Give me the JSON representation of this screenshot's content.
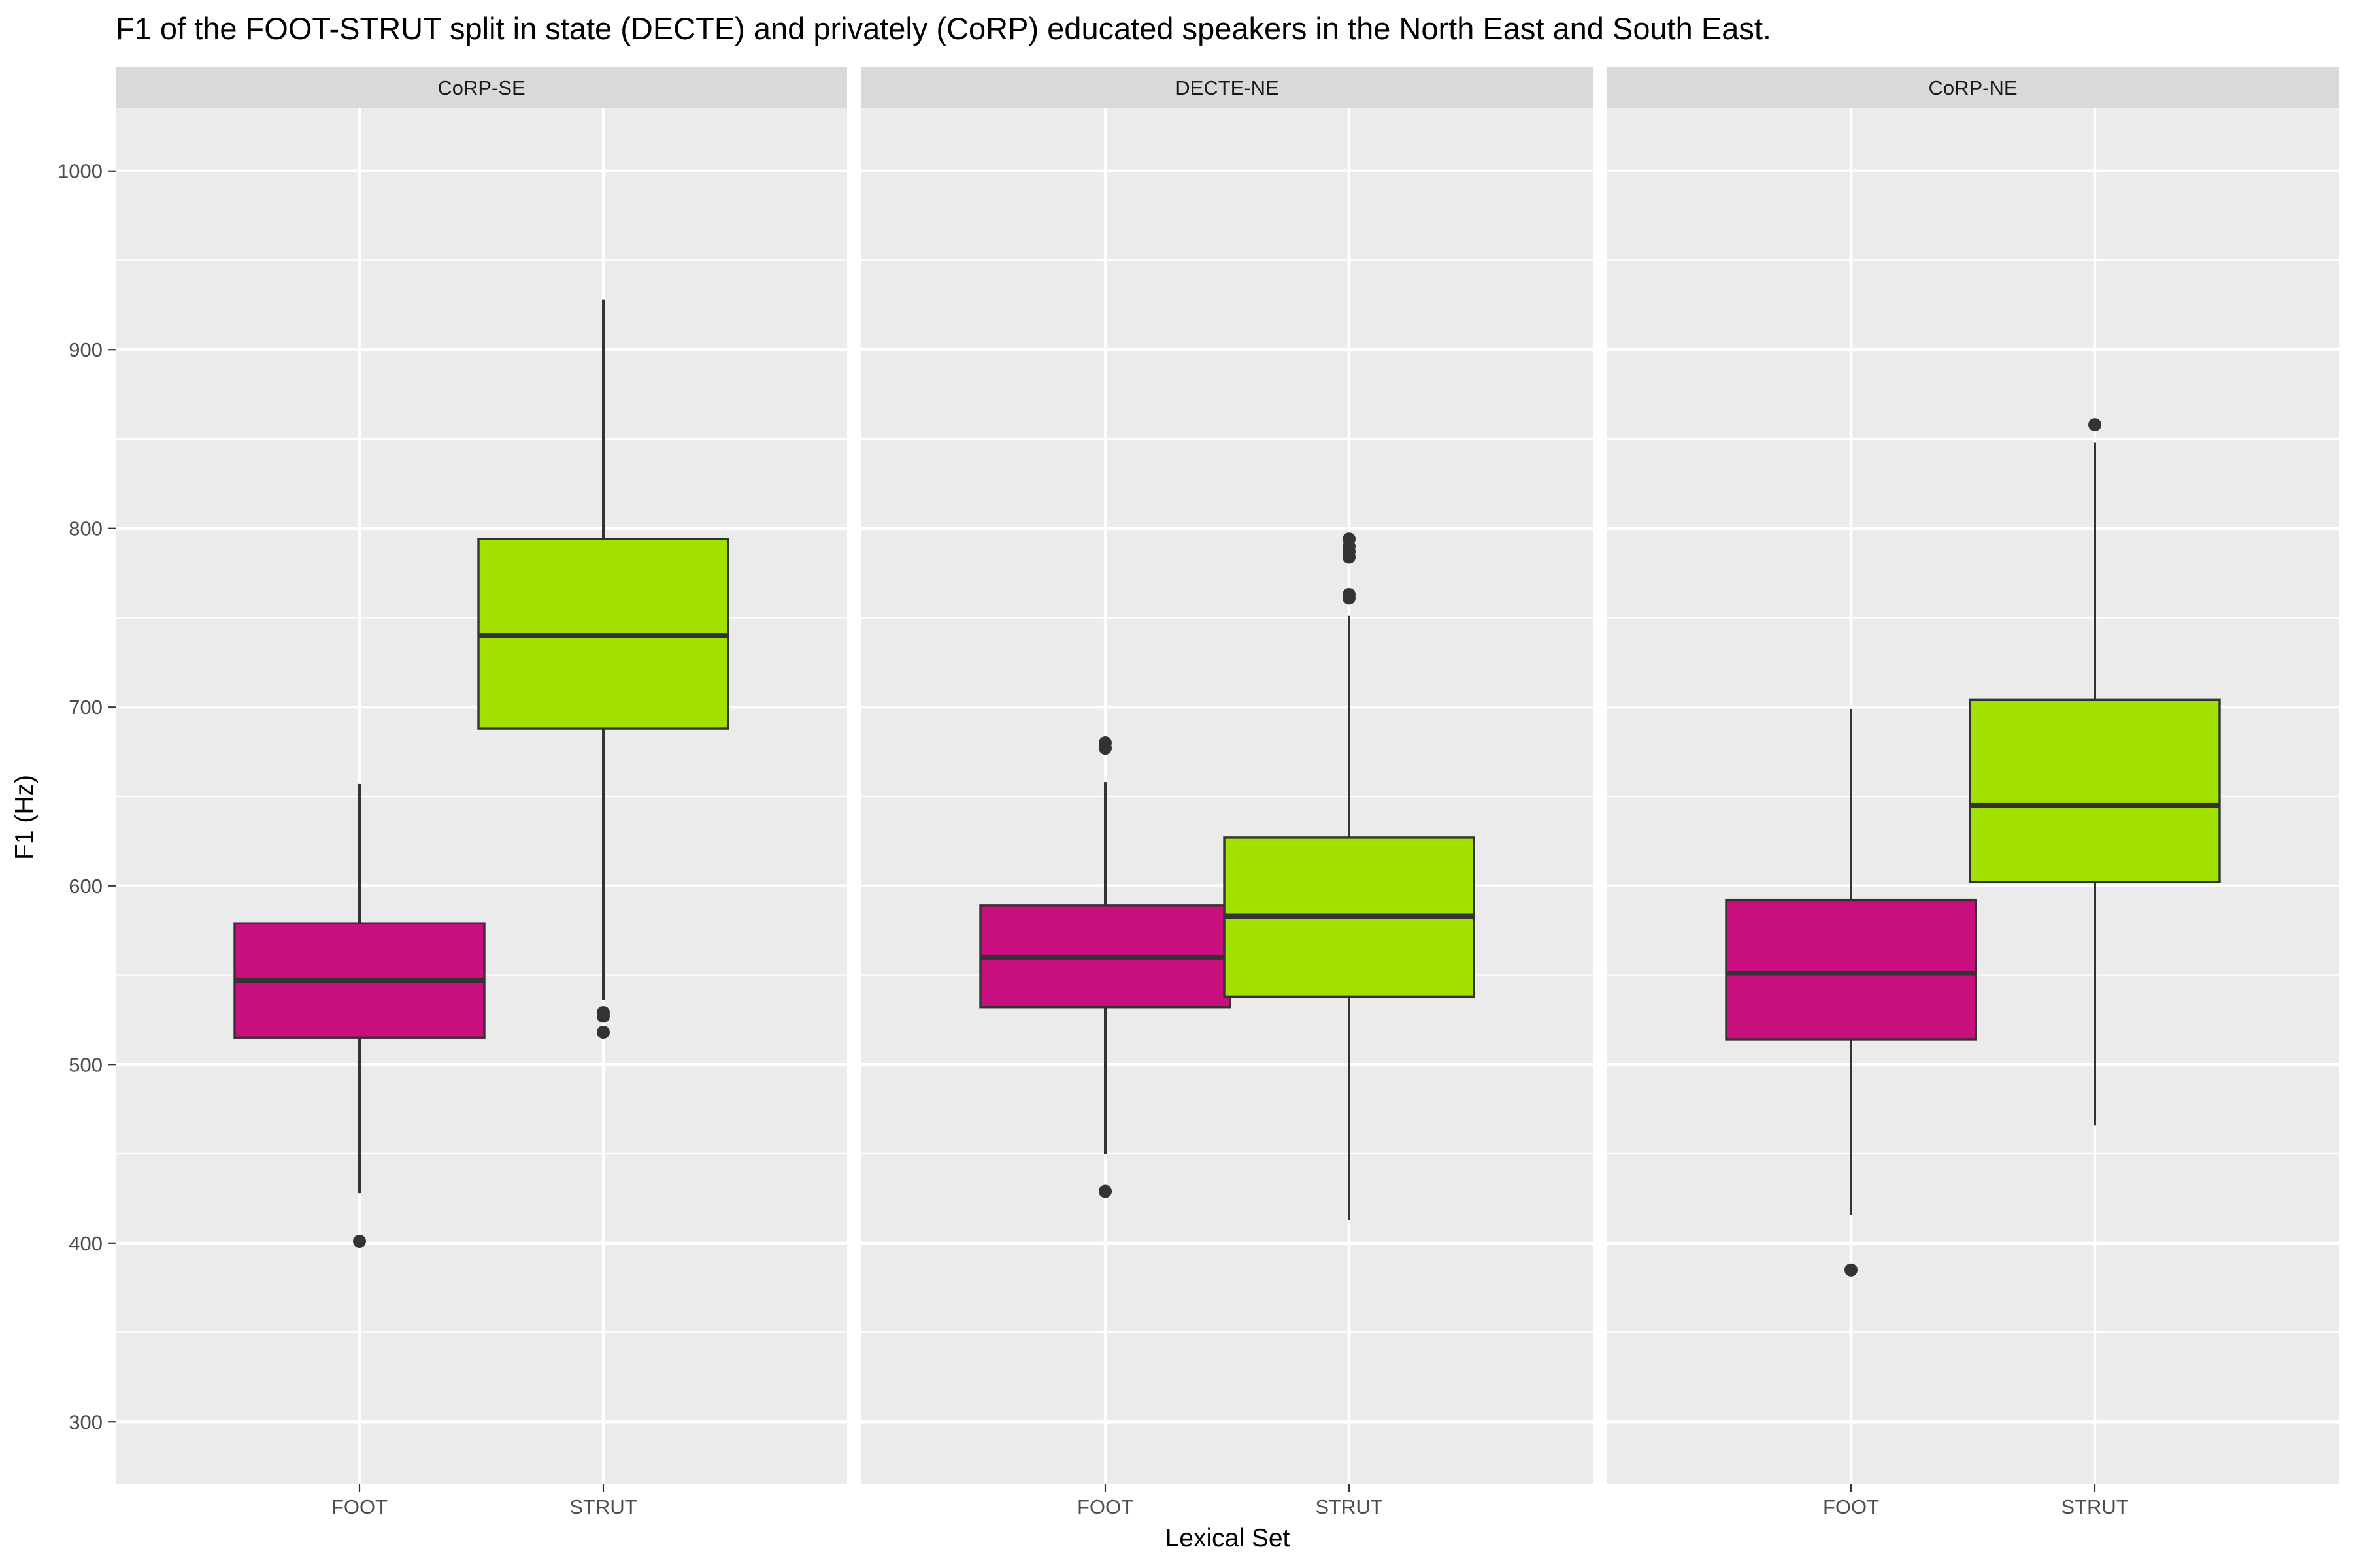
{
  "chart_data": {
    "type": "boxplot",
    "title": "F1 of the FOOT-STRUT split in state (DECTE) and privately (CoRP) educated speakers in the North East and South East.",
    "xlabel": "Lexical Set",
    "ylabel": "F1 (Hz)",
    "ylim": [
      265,
      1035
    ],
    "yticks": [
      300,
      400,
      500,
      600,
      700,
      800,
      900,
      1000
    ],
    "grid": true,
    "colors": {
      "FOOT": "#C90F7D",
      "STRUT": "#A2E000"
    },
    "categories": [
      "FOOT",
      "STRUT"
    ],
    "panels": [
      {
        "label": "CoRP-SE",
        "boxes": [
          {
            "category": "FOOT",
            "whisker_low": 428,
            "q1": 515,
            "median": 547,
            "q3": 579,
            "whisker_high": 657,
            "outliers": [
              401
            ]
          },
          {
            "category": "STRUT",
            "whisker_low": 536,
            "q1": 688,
            "median": 740,
            "q3": 794,
            "whisker_high": 928,
            "outliers": [
              518,
              527,
              529
            ]
          }
        ]
      },
      {
        "label": "DECTE-NE",
        "boxes": [
          {
            "category": "FOOT",
            "whisker_low": 450,
            "q1": 532,
            "median": 560,
            "q3": 589,
            "whisker_high": 658,
            "outliers": [
              429,
              677,
              680
            ]
          },
          {
            "category": "STRUT",
            "whisker_low": 413,
            "q1": 538,
            "median": 583,
            "q3": 627,
            "whisker_high": 751,
            "outliers": [
              761,
              763,
              784,
              787,
              790,
              794
            ]
          }
        ]
      },
      {
        "label": "CoRP-NE",
        "boxes": [
          {
            "category": "FOOT",
            "whisker_low": 416,
            "q1": 514,
            "median": 551,
            "q3": 592,
            "whisker_high": 699,
            "outliers": [
              385
            ]
          },
          {
            "category": "STRUT",
            "whisker_low": 466,
            "q1": 602,
            "median": 645,
            "q3": 704,
            "whisker_high": 848,
            "outliers": [
              858
            ]
          }
        ]
      }
    ]
  }
}
